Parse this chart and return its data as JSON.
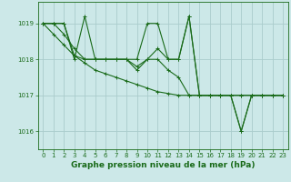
{
  "xlabel": "Graphe pression niveau de la mer (hPa)",
  "bg_color": "#cce8e8",
  "grid_color": "#aacccc",
  "line_color": "#1a6b1a",
  "marker": "+",
  "x": [
    0,
    1,
    2,
    3,
    4,
    5,
    6,
    7,
    8,
    9,
    10,
    11,
    12,
    13,
    14,
    15,
    16,
    17,
    18,
    19,
    20,
    21,
    22,
    23
  ],
  "series": [
    [
      1019.0,
      1019.0,
      1019.0,
      1018.0,
      1019.2,
      1018.0,
      1018.0,
      1018.0,
      1018.0,
      1018.0,
      1019.0,
      1019.0,
      1018.0,
      1018.0,
      1019.2,
      1017.0,
      1017.0,
      1017.0,
      1017.0,
      1016.0,
      1017.0,
      1017.0,
      1017.0,
      1017.0
    ],
    [
      1019.0,
      1019.0,
      1018.7,
      1018.3,
      1018.0,
      1018.0,
      1018.0,
      1018.0,
      1018.0,
      1017.8,
      1018.0,
      1018.0,
      1017.7,
      1017.5,
      1017.0,
      1017.0,
      1017.0,
      1017.0,
      1017.0,
      1017.0,
      1017.0,
      1017.0,
      1017.0,
      1017.0
    ],
    [
      1019.0,
      1019.0,
      1019.0,
      1018.1,
      1018.0,
      1018.0,
      1018.0,
      1018.0,
      1018.0,
      1017.7,
      1018.0,
      1018.3,
      1018.0,
      1018.0,
      1019.2,
      1017.0,
      1017.0,
      1017.0,
      1017.0,
      1016.0,
      1017.0,
      1017.0,
      1017.0,
      1017.0
    ],
    [
      1019.0,
      1018.7,
      1018.4,
      1018.1,
      1017.9,
      1017.7,
      1017.6,
      1017.5,
      1017.4,
      1017.3,
      1017.2,
      1017.1,
      1017.05,
      1017.0,
      1017.0,
      1017.0,
      1017.0,
      1017.0,
      1017.0,
      1017.0,
      1017.0,
      1017.0,
      1017.0,
      1017.0
    ]
  ],
  "yticks": [
    1016,
    1017,
    1018,
    1019
  ],
  "ylim": [
    1015.5,
    1019.6
  ],
  "xlim": [
    -0.5,
    23.5
  ],
  "xticks": [
    0,
    1,
    2,
    3,
    4,
    5,
    6,
    7,
    8,
    9,
    10,
    11,
    12,
    13,
    14,
    15,
    16,
    17,
    18,
    19,
    20,
    21,
    22,
    23
  ],
  "tick_fontsize": 5.0,
  "xlabel_fontsize": 6.5,
  "linewidth": 0.8,
  "markersize": 3.0,
  "markeredgewidth": 0.7
}
